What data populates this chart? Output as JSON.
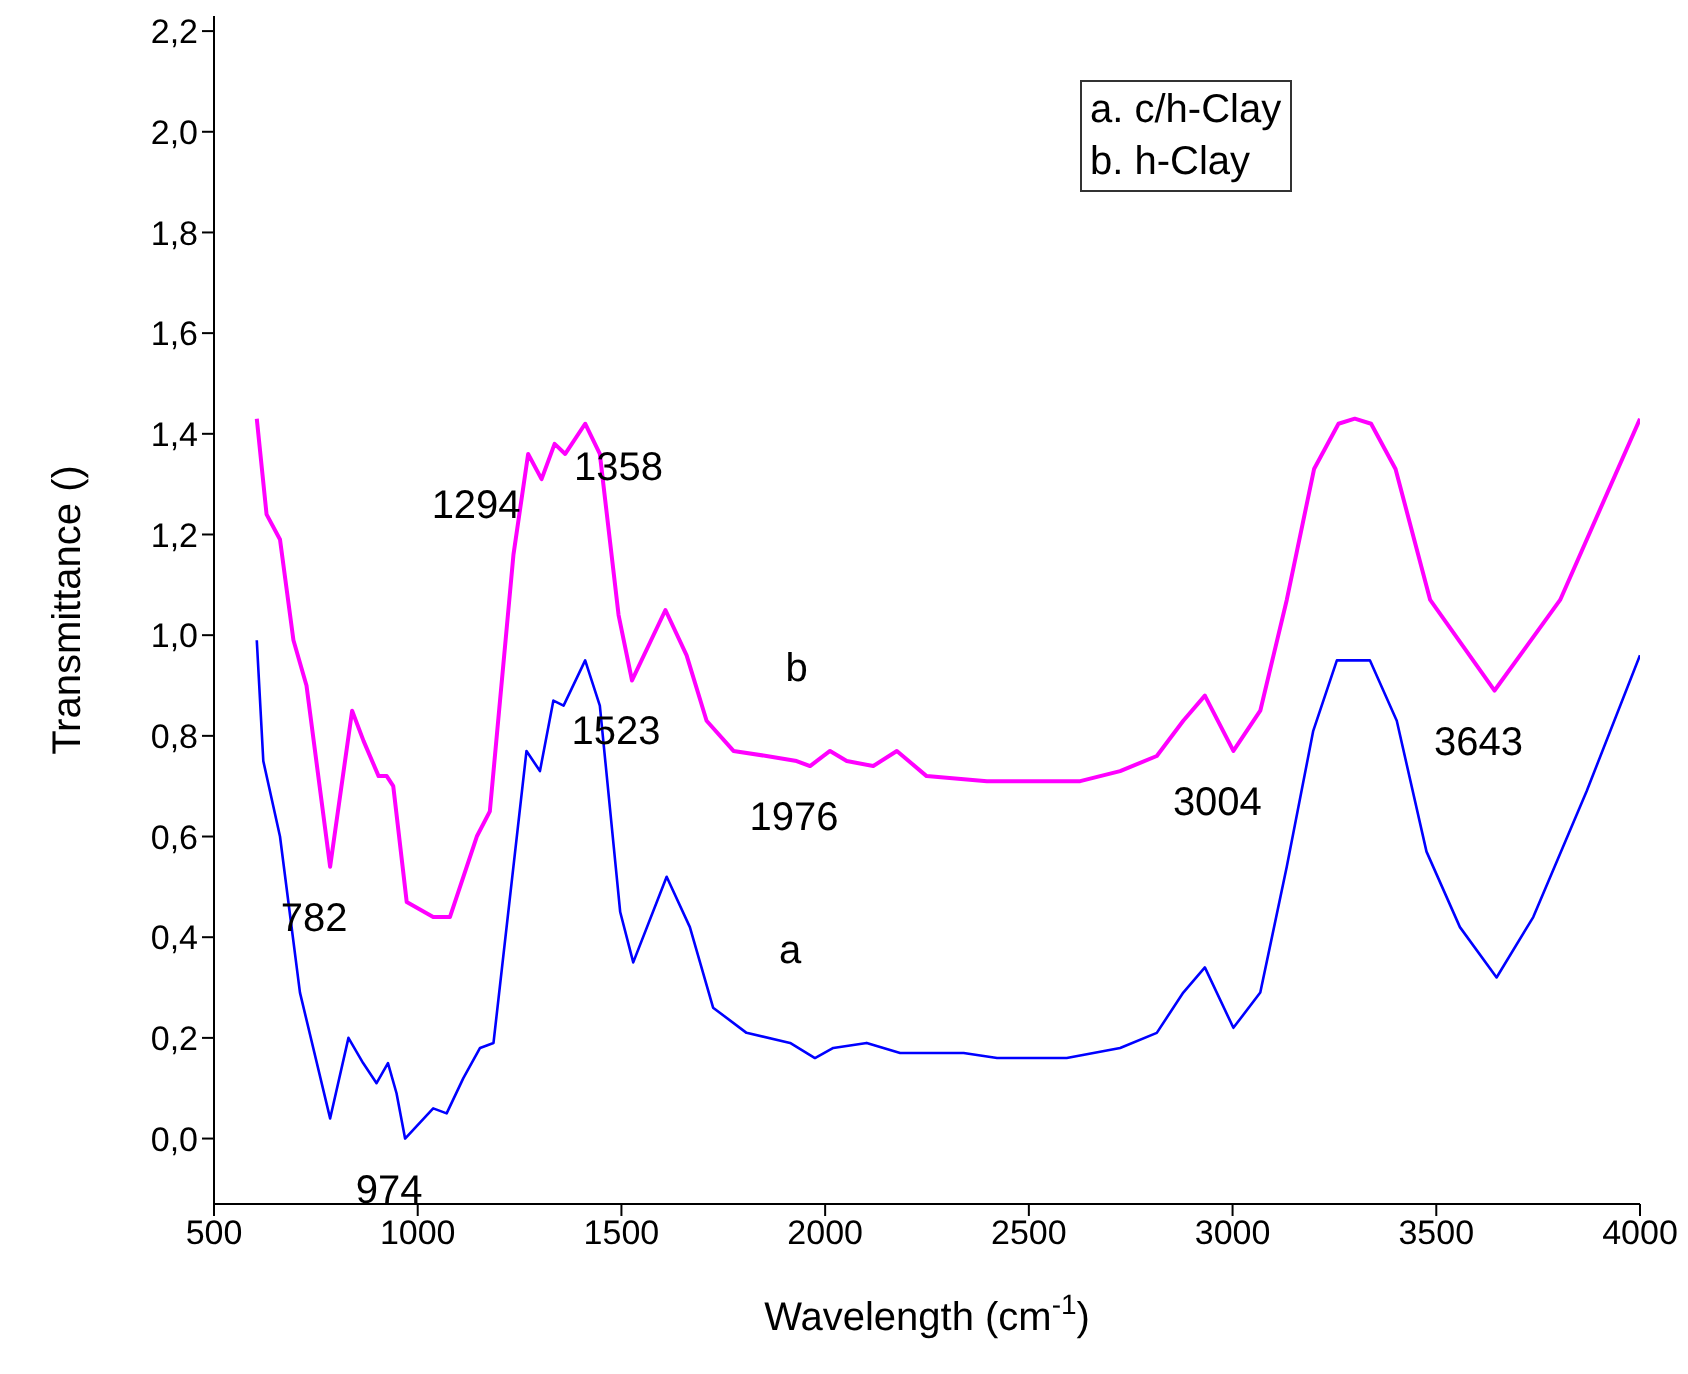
{
  "chart_data": {
    "type": "line",
    "xlabel": "Wavelength (cm$^{-1}$)",
    "ylabel": "Transmittance ()",
    "xlim": [
      500,
      4000
    ],
    "xticks": [
      500,
      1000,
      1500,
      2000,
      2500,
      3000,
      3500,
      4000
    ],
    "ylim": [
      -0.13,
      2.23
    ],
    "yticks": [
      {
        "value": 0,
        "label": "0,0"
      },
      {
        "value": 0.2,
        "label": "0,2"
      },
      {
        "value": 0.4,
        "label": "0,4"
      },
      {
        "value": 0.6,
        "label": "0,6"
      },
      {
        "value": 0.8,
        "label": "0,8"
      },
      {
        "value": 1.0,
        "label": "1,0"
      },
      {
        "value": 1.2,
        "label": "1,2"
      },
      {
        "value": 1.4,
        "label": "1,4"
      },
      {
        "value": 1.6,
        "label": "1,6"
      },
      {
        "value": 1.8,
        "label": "1,8"
      },
      {
        "value": 2.0,
        "label": "2,0"
      },
      {
        "value": 2.2,
        "label": "2,2"
      }
    ],
    "grid": false,
    "legend": false,
    "series": [
      {
        "name": "a",
        "color": "#0000ff",
        "x": [
          605,
          621,
          662,
          711,
          785,
          830,
          866,
          899,
          927,
          948,
          969,
          1038,
          1071,
          1112,
          1153,
          1186,
          1267,
          1300,
          1333,
          1358,
          1411,
          1447,
          1497,
          1529,
          1611,
          1668,
          1725,
          1807,
          1914,
          1975,
          2020,
          2102,
          2184,
          2266,
          2340,
          2422,
          2593,
          2724,
          2814,
          2879,
          2932,
          3002,
          3068,
          3133,
          3198,
          3256,
          3337,
          3403,
          3476,
          3558,
          3648,
          3738,
          3869,
          4000
        ],
        "values": [
          0.99,
          0.75,
          0.6,
          0.29,
          0.04,
          0.2,
          0.15,
          0.11,
          0.15,
          0.09,
          0.0,
          0.06,
          0.05,
          0.12,
          0.18,
          0.19,
          0.77,
          0.73,
          0.87,
          0.86,
          0.95,
          0.86,
          0.45,
          0.35,
          0.52,
          0.42,
          0.26,
          0.21,
          0.19,
          0.16,
          0.18,
          0.19,
          0.17,
          0.17,
          0.17,
          0.16,
          0.16,
          0.18,
          0.21,
          0.29,
          0.34,
          0.22,
          0.29,
          0.54,
          0.81,
          0.95,
          0.95,
          0.83,
          0.57,
          0.42,
          0.32,
          0.44,
          0.69,
          0.96
        ]
      },
      {
        "name": "b",
        "color": "#ff00ff",
        "x": [
          605,
          629,
          662,
          695,
          727,
          785,
          839,
          867,
          904,
          924,
          940,
          973,
          1038,
          1079,
          1145,
          1177,
          1235,
          1271,
          1304,
          1336,
          1362,
          1411,
          1447,
          1493,
          1526,
          1608,
          1660,
          1709,
          1775,
          1856,
          1930,
          1963,
          2012,
          2053,
          2118,
          2176,
          2249,
          2397,
          2626,
          2724,
          2814,
          2879,
          2932,
          3002,
          3068,
          3133,
          3200,
          3260,
          3300,
          3340,
          3400,
          3485,
          3643,
          3804,
          4000
        ],
        "values": [
          1.43,
          1.24,
          1.19,
          0.99,
          0.9,
          0.54,
          0.85,
          0.79,
          0.72,
          0.72,
          0.7,
          0.47,
          0.44,
          0.44,
          0.6,
          0.65,
          1.16,
          1.36,
          1.31,
          1.38,
          1.36,
          1.42,
          1.36,
          1.04,
          0.91,
          1.05,
          0.96,
          0.83,
          0.77,
          0.76,
          0.75,
          0.74,
          0.77,
          0.75,
          0.74,
          0.77,
          0.72,
          0.71,
          0.71,
          0.73,
          0.76,
          0.83,
          0.88,
          0.77,
          0.85,
          1.07,
          1.33,
          1.42,
          1.43,
          1.42,
          1.33,
          1.07,
          0.89,
          1.07,
          1.43
        ]
      }
    ],
    "annotations": [
      "a. c/h-Clay",
      "b. h-Clay",
      {
        "text": "782",
        "x": 785,
        "y": 0.54
      },
      {
        "text": "974",
        "x": 969,
        "y": 0.0
      },
      {
        "text": "1294",
        "x": 1271,
        "y": 1.36
      },
      {
        "text": "1358",
        "x": 1336,
        "y": 1.38
      },
      {
        "text": "1523",
        "x": 1526,
        "y": 0.91
      },
      {
        "text": "1976",
        "x": 1963,
        "y": 0.74
      },
      {
        "text": "3004",
        "x": 3002,
        "y": 0.77
      },
      {
        "text": "3643",
        "x": 3643,
        "y": 0.89
      }
    ]
  }
}
